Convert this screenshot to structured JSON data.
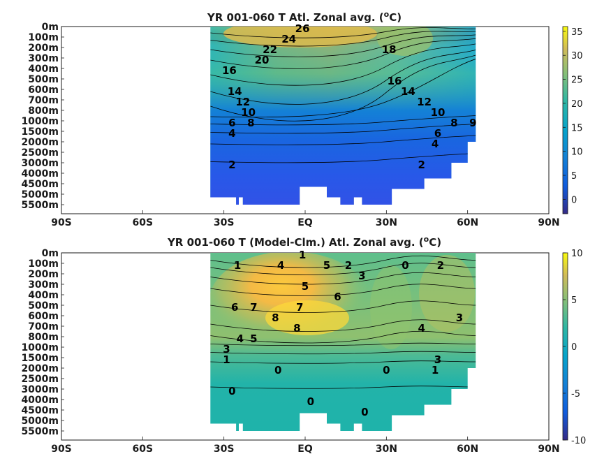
{
  "chart_data": [
    {
      "type": "heatmap",
      "title_main": "YR 001-060 T Atl. Zonal avg. (",
      "title_sup": "o",
      "title_tail": "C)",
      "x_ticks": [
        "90S",
        "60S",
        "30S",
        "EQ",
        "30N",
        "60N",
        "90N"
      ],
      "x_tick_values": [
        -90,
        -60,
        -30,
        0,
        30,
        60,
        90
      ],
      "xlim": [
        -90,
        90
      ],
      "y_ticks": [
        "0m",
        "100m",
        "200m",
        "300m",
        "400m",
        "500m",
        "600m",
        "700m",
        "800m",
        "1000m",
        "1500m",
        "2000m",
        "2500m",
        "3000m",
        "4000m",
        "4500m",
        "5000m",
        "5500m"
      ],
      "colorbar_ticks": [
        "35",
        "30",
        "25",
        "20",
        "15",
        "10",
        "5",
        "0"
      ],
      "colorbar_tick_values": [
        35,
        30,
        25,
        20,
        15,
        10,
        5,
        0
      ],
      "colorbar_range": [
        -3,
        36
      ],
      "contour_labels": [
        {
          "text": "26",
          "lat": -1,
          "depth": "0m"
        },
        {
          "text": "24",
          "lat": -6,
          "depth": "100m"
        },
        {
          "text": "22",
          "lat": -13,
          "depth": "200m"
        },
        {
          "text": "20",
          "lat": -16,
          "depth": "300m"
        },
        {
          "text": "18",
          "lat": 31,
          "depth": "200m"
        },
        {
          "text": "16",
          "lat": -28,
          "depth": "400m"
        },
        {
          "text": "16",
          "lat": 33,
          "depth": "500m"
        },
        {
          "text": "14",
          "lat": -26,
          "depth": "600m"
        },
        {
          "text": "14",
          "lat": 38,
          "depth": "600m"
        },
        {
          "text": "12",
          "lat": -23,
          "depth": "700m"
        },
        {
          "text": "12",
          "lat": 44,
          "depth": "700m"
        },
        {
          "text": "10",
          "lat": -21,
          "depth": "800m"
        },
        {
          "text": "10",
          "lat": 49,
          "depth": "800m"
        },
        {
          "text": "8",
          "lat": -20,
          "depth": "1000m"
        },
        {
          "text": "8",
          "lat": 55,
          "depth": "1000m"
        },
        {
          "text": "6",
          "lat": -27,
          "depth": "1000m"
        },
        {
          "text": "6",
          "lat": 49,
          "depth": "1500m"
        },
        {
          "text": "4",
          "lat": -27,
          "depth": "1500m"
        },
        {
          "text": "4",
          "lat": 48,
          "depth": "2000m"
        },
        {
          "text": "9",
          "lat": 62,
          "depth": "1000m"
        },
        {
          "text": "2",
          "lat": -27,
          "depth": "3000m"
        },
        {
          "text": "2",
          "lat": 43,
          "depth": "3000m"
        }
      ]
    },
    {
      "type": "heatmap",
      "title_main": "YR 001-060 T (Model-Clm.) Atl. Zonal avg. (",
      "title_sup": "o",
      "title_tail": "C)",
      "x_ticks": [
        "90S",
        "60S",
        "30S",
        "EQ",
        "30N",
        "60N",
        "90N"
      ],
      "x_tick_values": [
        -90,
        -60,
        -30,
        0,
        30,
        60,
        90
      ],
      "xlim": [
        -90,
        90
      ],
      "y_ticks": [
        "0m",
        "100m",
        "200m",
        "300m",
        "400m",
        "500m",
        "600m",
        "700m",
        "800m",
        "1000m",
        "1500m",
        "2000m",
        "2500m",
        "3000m",
        "4000m",
        "4500m",
        "5000m",
        "5500m"
      ],
      "colorbar_ticks": [
        "10",
        "5",
        "0",
        "-5",
        "-10"
      ],
      "colorbar_tick_values": [
        10,
        5,
        0,
        -5,
        -10
      ],
      "colorbar_range": [
        -10,
        10
      ],
      "contour_labels": [
        {
          "text": "1",
          "lat": -1,
          "depth": "0m"
        },
        {
          "text": "1",
          "lat": -25,
          "depth": "100m"
        },
        {
          "text": "4",
          "lat": -9,
          "depth": "100m"
        },
        {
          "text": "5",
          "lat": 8,
          "depth": "100m"
        },
        {
          "text": "2",
          "lat": 16,
          "depth": "100m"
        },
        {
          "text": "3",
          "lat": 21,
          "depth": "200m"
        },
        {
          "text": "0",
          "lat": 37,
          "depth": "100m"
        },
        {
          "text": "2",
          "lat": 50,
          "depth": "100m"
        },
        {
          "text": "5",
          "lat": 0,
          "depth": "300m"
        },
        {
          "text": "6",
          "lat": 12,
          "depth": "400m"
        },
        {
          "text": "6",
          "lat": -26,
          "depth": "500m"
        },
        {
          "text": "7",
          "lat": -19,
          "depth": "500m"
        },
        {
          "text": "7",
          "lat": -2,
          "depth": "500m"
        },
        {
          "text": "8",
          "lat": -11,
          "depth": "600m"
        },
        {
          "text": "8",
          "lat": -3,
          "depth": "700m"
        },
        {
          "text": "3",
          "lat": 57,
          "depth": "600m"
        },
        {
          "text": "4",
          "lat": 43,
          "depth": "700m"
        },
        {
          "text": "3",
          "lat": -29,
          "depth": "1000m"
        },
        {
          "text": "4",
          "lat": -24,
          "depth": "800m"
        },
        {
          "text": "5",
          "lat": -19,
          "depth": "800m"
        },
        {
          "text": "1",
          "lat": -29,
          "depth": "1500m"
        },
        {
          "text": "3",
          "lat": 49,
          "depth": "1500m"
        },
        {
          "text": "1",
          "lat": 48,
          "depth": "2000m"
        },
        {
          "text": "0",
          "lat": -10,
          "depth": "2000m"
        },
        {
          "text": "0",
          "lat": 30,
          "depth": "2000m"
        },
        {
          "text": "0",
          "lat": -27,
          "depth": "3000m"
        },
        {
          "text": "0",
          "lat": 2,
          "depth": "4000m"
        },
        {
          "text": "0",
          "lat": 22,
          "depth": "4500m"
        }
      ]
    }
  ]
}
